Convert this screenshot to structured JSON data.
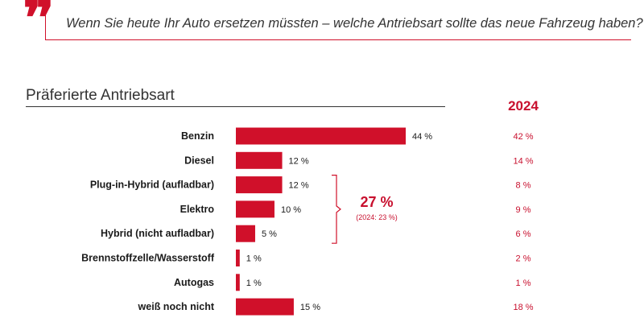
{
  "quote_symbol": "❞",
  "question": "Wenn Sie heute Ihr Auto ersetzen müssten – welche Antriebsart sollte das neue Fahrzeug haben?",
  "colors": {
    "accent": "#d0102a",
    "compare": "#c8102e",
    "text": "#1a1a1a"
  },
  "chart_data": {
    "type": "bar",
    "orientation": "horizontal",
    "title": "Präferierte Antriebsart",
    "categories": [
      "Benzin",
      "Diesel",
      "Plug-in-Hybrid (aufladbar)",
      "Elektro",
      "Hybrid (nicht aufladbar)",
      "Brennstoffzelle/Wasserstoff",
      "Autogas",
      "weiß noch nicht"
    ],
    "values": [
      44,
      12,
      12,
      10,
      5,
      1,
      1,
      15
    ],
    "value_labels": [
      "44 %",
      "12 %",
      "12 %",
      "10 %",
      "5 %",
      "1 %",
      "1 %",
      "15 %"
    ],
    "unit": "%",
    "xlim": [
      0,
      50
    ],
    "comparison": {
      "label": "2024",
      "values": [
        42,
        14,
        8,
        9,
        6,
        2,
        1,
        18
      ],
      "value_labels": [
        "42 %",
        "14 %",
        "8 %",
        "9 %",
        "6 %",
        "2 %",
        "1 %",
        "18 %"
      ]
    },
    "group_annotation": {
      "categories": [
        "Plug-in-Hybrid (aufladbar)",
        "Elektro",
        "Hybrid (nicht aufladbar)"
      ],
      "total_label": "27 %",
      "sub_label": "(2024: 23 %)"
    }
  }
}
